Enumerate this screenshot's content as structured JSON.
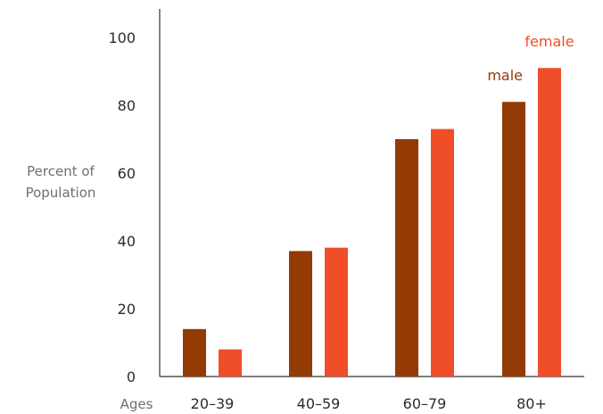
{
  "chart_data": {
    "type": "bar",
    "categories": [
      "20–39",
      "40–59",
      "60–79",
      "80+"
    ],
    "series": [
      {
        "name": "male",
        "values": [
          14,
          37,
          70,
          81
        ],
        "color": "#933a05"
      },
      {
        "name": "female",
        "values": [
          8,
          38,
          73,
          91
        ],
        "color": "#f04e28"
      }
    ],
    "ylabel_line1": "Percent of",
    "ylabel_line2": "Population",
    "xlabel": "Ages",
    "ylim": [
      0,
      100
    ],
    "yticks": [
      "0",
      "20",
      "40",
      "60",
      "80",
      "100"
    ],
    "grid": false,
    "legend_placement": "top-right, as direct labels above bars"
  }
}
